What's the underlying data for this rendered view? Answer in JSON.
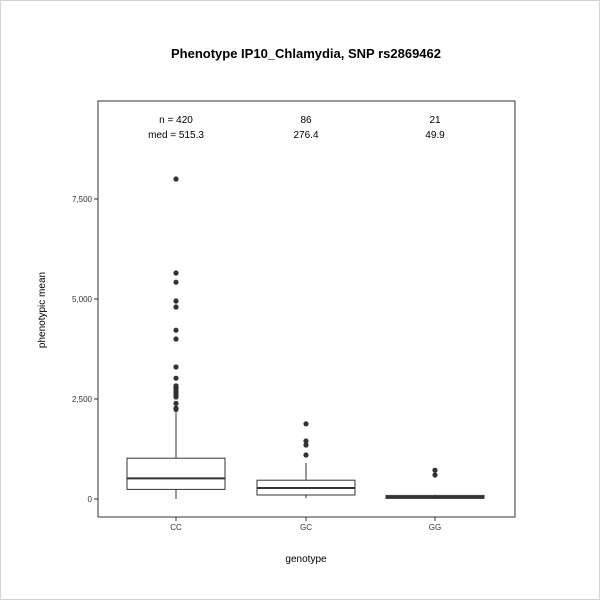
{
  "chart_data": {
    "type": "box",
    "title": "Phenotype IP10_Chlamydia, SNP rs2869462",
    "xlabel": "genotype",
    "ylabel": "phenotypic mean",
    "ylim": [
      -450,
      9950
    ],
    "yticks": [
      0,
      2500,
      5000,
      7500
    ],
    "ytick_labels": [
      "0",
      "2,500",
      "5,000",
      "7,500"
    ],
    "categories": [
      "CC",
      "GC",
      "GG"
    ],
    "boxes": [
      {
        "category": "CC",
        "min": 0,
        "q1": 240,
        "median": 515.3,
        "q3": 1020,
        "whisker_high": 2180,
        "outliers": [
          2240,
          2270,
          2390,
          2550,
          2600,
          2650,
          2700,
          2760,
          2800,
          2830,
          3020,
          3300,
          4000,
          4220,
          4800,
          4950,
          5420,
          5650,
          8000
        ]
      },
      {
        "category": "GC",
        "min": 20,
        "q1": 100,
        "median": 276.4,
        "q3": 470,
        "whisker_high": 900,
        "outliers": [
          1100,
          1350,
          1450,
          1880
        ]
      },
      {
        "category": "GG",
        "min": 0,
        "q1": 15,
        "median": 49.9,
        "q3": 90,
        "whisker_high": 110,
        "outliers": [
          600,
          720
        ]
      }
    ],
    "annotations": {
      "n_label": [
        "n = 420",
        "86",
        "21"
      ],
      "med_label": [
        "med = 515.3",
        "276.4",
        "49.9"
      ]
    },
    "grid": false
  }
}
